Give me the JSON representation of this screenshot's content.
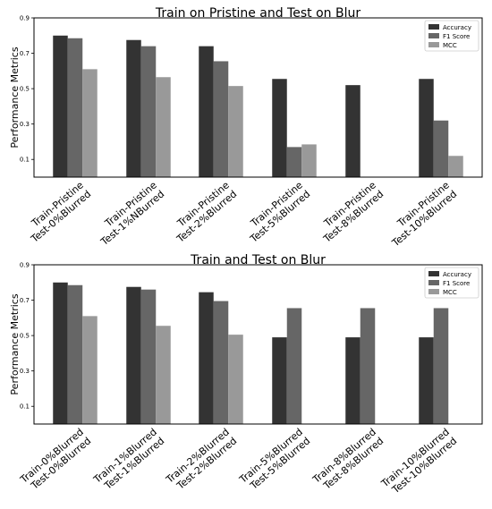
{
  "colors": {
    "Accuracy": "#333333",
    "F1 Score": "#666666",
    "MCC": "#999999"
  },
  "chart_data": [
    {
      "type": "bar",
      "title": "Train on Pristine and Test on Blur",
      "ylabel": "Performance Metrics",
      "xlabel": "",
      "ylim": [
        0.0,
        0.9
      ],
      "yticks": [
        "0.1",
        "0.3",
        "0.5",
        "0.7",
        "0.9"
      ],
      "grid": false,
      "legend_position": "top-right",
      "categories": [
        [
          "Train-Pristine",
          "Test-0%Blurred"
        ],
        [
          "Train-Pristine",
          "Test-1%NBurred"
        ],
        [
          "Train-Pristine",
          "Test-2%Blurred"
        ],
        [
          "Train-Pristine",
          "Test-5%Blurred"
        ],
        [
          "Train-Pristine",
          "Test-8%Blurred"
        ],
        [
          "Train-Pristine",
          "Test-10%Blurred"
        ]
      ],
      "series": [
        {
          "name": "Accuracy",
          "values": [
            0.8,
            0.775,
            0.74,
            0.555,
            0.52,
            0.555
          ]
        },
        {
          "name": "F1 Score",
          "values": [
            0.785,
            0.74,
            0.655,
            0.17,
            0.0,
            0.32
          ]
        },
        {
          "name": "MCC",
          "values": [
            0.61,
            0.565,
            0.515,
            0.185,
            0.0,
            0.12
          ]
        }
      ]
    },
    {
      "type": "bar",
      "title": "Train and Test on Blur",
      "ylabel": "Performance Metrics",
      "xlabel": "",
      "ylim": [
        0.0,
        0.9
      ],
      "yticks": [
        "0.1",
        "0.3",
        "0.5",
        "0.7",
        "0.9"
      ],
      "grid": false,
      "legend_position": "top-right",
      "categories": [
        [
          "Train-0%Blurred",
          "Test-0%Blurred"
        ],
        [
          "Train-1%Blurred",
          "Test-1%Blurred"
        ],
        [
          "Train-2%Blurred",
          "Test-2%Blurred"
        ],
        [
          "Train-5%Blurred",
          "Test-5%Blurred"
        ],
        [
          "Train-8%Blurred",
          "Test-8%Blurred"
        ],
        [
          "Train-10%Blurred",
          "Test-10%Blurred"
        ]
      ],
      "series": [
        {
          "name": "Accuracy",
          "values": [
            0.8,
            0.775,
            0.745,
            0.49,
            0.49,
            0.49
          ]
        },
        {
          "name": "F1 Score",
          "values": [
            0.785,
            0.76,
            0.695,
            0.655,
            0.655,
            0.655
          ]
        },
        {
          "name": "MCC",
          "values": [
            0.61,
            0.555,
            0.505,
            0.0,
            0.0,
            0.0
          ]
        }
      ]
    }
  ]
}
